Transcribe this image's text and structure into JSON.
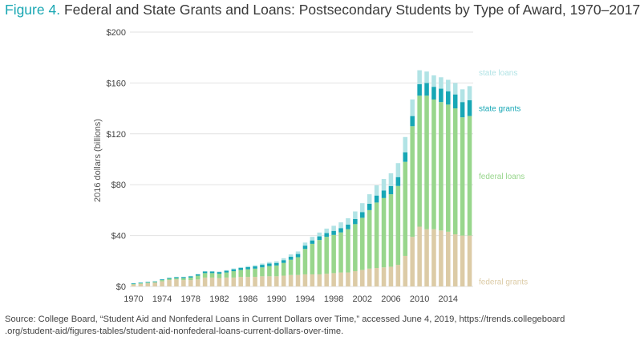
{
  "title": {
    "figure_label": "Figure 4.",
    "text": "Federal and State Grants and Loans: Postsecondary Students by Type of Award, 1970–2017"
  },
  "source": {
    "line1": "Source: College Board, “Student Aid and Nonfederal Loans in Current Dollars over Time,” accessed June 4, 2019, https://trends.collegeboard",
    "line2": ".org/student-aid/figures-tables/student-aid-nonfederal-loans-current-dollars-over-time."
  },
  "colors": {
    "federal_grants": "#dccba6",
    "federal_loans": "#98d68c",
    "state_grants": "#17a7b5",
    "state_loans": "#b1e3e5",
    "grid": "#e2e2e2",
    "axis_text": "#444444",
    "title_accent": "#1aa7b3"
  },
  "chart_data": {
    "type": "bar",
    "stacked": true,
    "title": "",
    "ylabel": "2016 dollars (billions)",
    "ylim": [
      0,
      200
    ],
    "yticks": [
      0,
      40,
      80,
      120,
      160,
      200
    ],
    "ytick_labels": [
      "$0",
      "$40",
      "$80",
      "$120",
      "$160",
      "$200"
    ],
    "xtick_labels": [
      "1970",
      "1974",
      "1978",
      "1982",
      "1986",
      "1990",
      "1994",
      "1998",
      "2002",
      "2006",
      "2010",
      "2014"
    ],
    "grid": true,
    "legend_placement": "right, inline beside series",
    "categories": [
      "1970",
      "1971",
      "1972",
      "1973",
      "1974",
      "1975",
      "1976",
      "1977",
      "1978",
      "1979",
      "1980",
      "1981",
      "1982",
      "1983",
      "1984",
      "1985",
      "1986",
      "1987",
      "1988",
      "1989",
      "1990",
      "1991",
      "1992",
      "1993",
      "1994",
      "1995",
      "1996",
      "1997",
      "1998",
      "1999",
      "2000",
      "2001",
      "2002",
      "2003",
      "2004",
      "2005",
      "2006",
      "2007",
      "2008",
      "2009",
      "2010",
      "2011",
      "2012",
      "2013",
      "2014",
      "2015",
      "2016",
      "2017"
    ],
    "series": [
      {
        "name": "federal grants",
        "values": [
          1.5,
          2,
          2.5,
          3,
          4,
          5,
          5.5,
          5,
          5,
          5.5,
          7,
          7,
          6.5,
          7,
          7,
          7.5,
          7.5,
          7.5,
          8,
          8,
          8,
          8.5,
          9,
          9,
          9.5,
          9.5,
          9.5,
          10,
          10.5,
          11,
          11,
          12,
          13,
          14,
          14.5,
          15,
          15.5,
          17,
          24,
          39,
          47,
          45,
          45,
          44,
          43,
          41,
          40,
          40
        ]
      },
      {
        "name": "federal loans",
        "values": [
          0.5,
          0.5,
          0.5,
          0.5,
          1,
          1,
          1,
          1.5,
          2,
          3,
          3.5,
          3.5,
          3.5,
          4,
          5,
          5.5,
          6,
          6.5,
          7,
          8,
          8.5,
          10,
          12,
          14,
          20,
          24,
          27,
          29,
          30,
          31.5,
          34,
          37,
          41,
          46,
          51.5,
          54.5,
          57,
          62,
          74,
          87,
          103,
          105,
          102,
          101,
          100,
          99,
          93,
          94
        ]
      },
      {
        "name": "state grants",
        "values": [
          0.5,
          0.5,
          0.5,
          0.5,
          0.6,
          0.7,
          0.8,
          0.9,
          1,
          1,
          1.2,
          1.2,
          1.3,
          1.3,
          1.5,
          1.5,
          1.7,
          1.8,
          2,
          2,
          2,
          2.2,
          2.4,
          2.5,
          2.6,
          2.7,
          2.9,
          3,
          3.2,
          3.4,
          3.6,
          4,
          4.5,
          5,
          5.5,
          6,
          6.5,
          7,
          7.5,
          8,
          9,
          10,
          10,
          10.5,
          10.5,
          11,
          12,
          12.5
        ]
      },
      {
        "name": "state loans",
        "values": [
          0.1,
          0.1,
          0.1,
          0.1,
          0.1,
          0.1,
          0.2,
          0.2,
          0.3,
          0.3,
          0.3,
          0.3,
          0.4,
          0.5,
          0.6,
          0.7,
          0.8,
          0.9,
          1,
          1.2,
          1.3,
          1.5,
          1.8,
          2,
          2.4,
          2.8,
          3,
          3.5,
          4,
          4.5,
          5,
          6,
          7,
          7.5,
          8,
          9,
          10,
          11,
          12,
          13,
          11,
          9,
          9,
          9,
          9,
          9,
          10,
          11
        ]
      }
    ],
    "series_labels": [
      "state loans",
      "state grants",
      "federal loans",
      "federal grants"
    ]
  }
}
